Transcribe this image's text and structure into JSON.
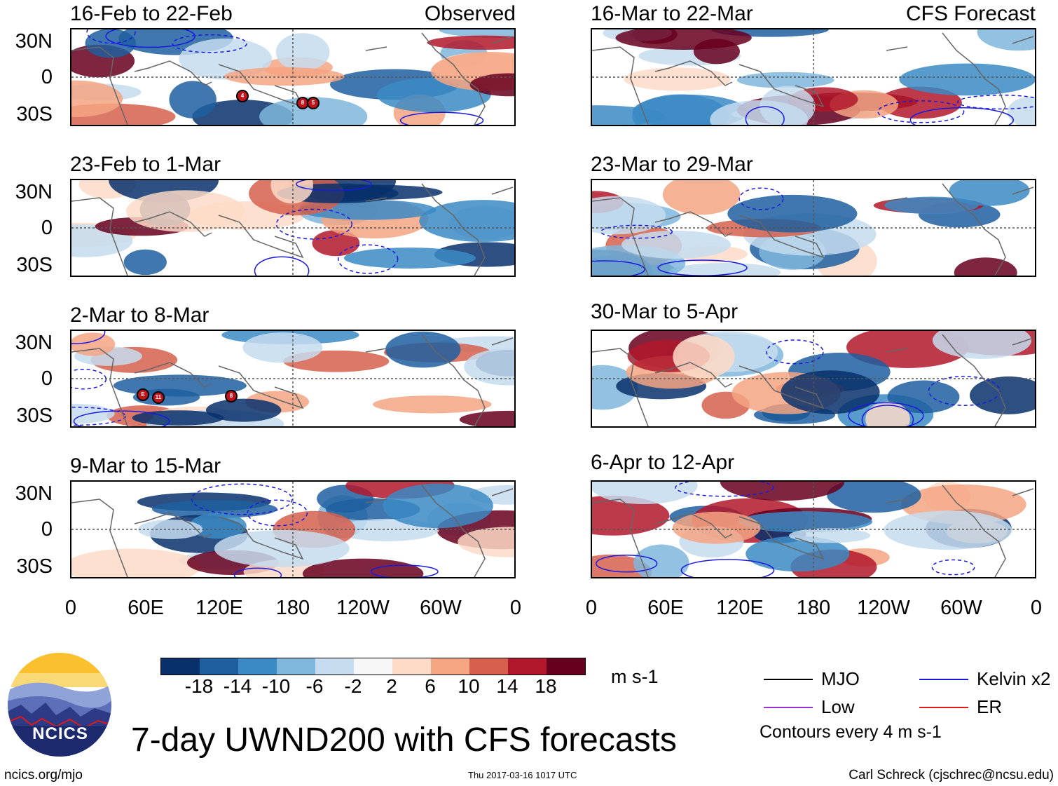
{
  "chart_data": {
    "type": "heatmap",
    "title": "7-day UWND200 with CFS forecasts",
    "variable": "UWND200",
    "units": "m s-1",
    "x_ticks": [
      "0",
      "60E",
      "120E",
      "180",
      "120W",
      "60W",
      "0"
    ],
    "y_ticks": [
      "30N",
      "0",
      "30S"
    ],
    "colorbar": {
      "ticks": [
        "-18",
        "-14",
        "-10",
        "-6",
        "-2",
        "2",
        "6",
        "10",
        "14",
        "18"
      ],
      "colors": [
        "#08306b",
        "#1f5fa0",
        "#3b8ac4",
        "#7fb6dc",
        "#c6dcef",
        "#f7f7f7",
        "#fddbc7",
        "#f4a582",
        "#d6604d",
        "#b2182b",
        "#67001f"
      ]
    },
    "panels": [
      {
        "period": "16-Feb to 22-Feb",
        "source": "Observed",
        "column": "left",
        "row": 1
      },
      {
        "period": "23-Feb to 1-Mar",
        "source": "",
        "column": "left",
        "row": 2
      },
      {
        "period": "2-Mar to 8-Mar",
        "source": "",
        "column": "left",
        "row": 3
      },
      {
        "period": "9-Mar to 15-Mar",
        "source": "",
        "column": "left",
        "row": 4
      },
      {
        "period": "16-Mar to 22-Mar",
        "source": "CFS Forecast",
        "column": "right",
        "row": 1
      },
      {
        "period": "23-Mar to 29-Mar",
        "source": "",
        "column": "right",
        "row": 2
      },
      {
        "period": "30-Mar to 5-Apr",
        "source": "",
        "column": "right",
        "row": 3
      },
      {
        "period": "6-Apr to 12-Apr",
        "source": "",
        "column": "right",
        "row": 4
      }
    ],
    "cyclone_markers": [
      {
        "panel": 1,
        "labels": [
          "4",
          "8",
          "5"
        ]
      },
      {
        "panel": 3,
        "labels": [
          "E",
          "11",
          "8"
        ]
      }
    ],
    "contour_legend": [
      {
        "label": "MJO",
        "color": "#000000"
      },
      {
        "label": "Kelvin x2",
        "color": "#1a1adf"
      },
      {
        "label": "Low",
        "color": "#9b30d0"
      },
      {
        "label": "ER",
        "color": "#e01818"
      }
    ],
    "contour_note": "Contours every 4 m s-1"
  },
  "branding": {
    "logo_text": "NCICS",
    "website": "ncics.org/mjo",
    "timestamp": "Thu 2017-03-16 1017 UTC",
    "author": "Carl Schreck (cjschrec@ncsu.edu)"
  }
}
